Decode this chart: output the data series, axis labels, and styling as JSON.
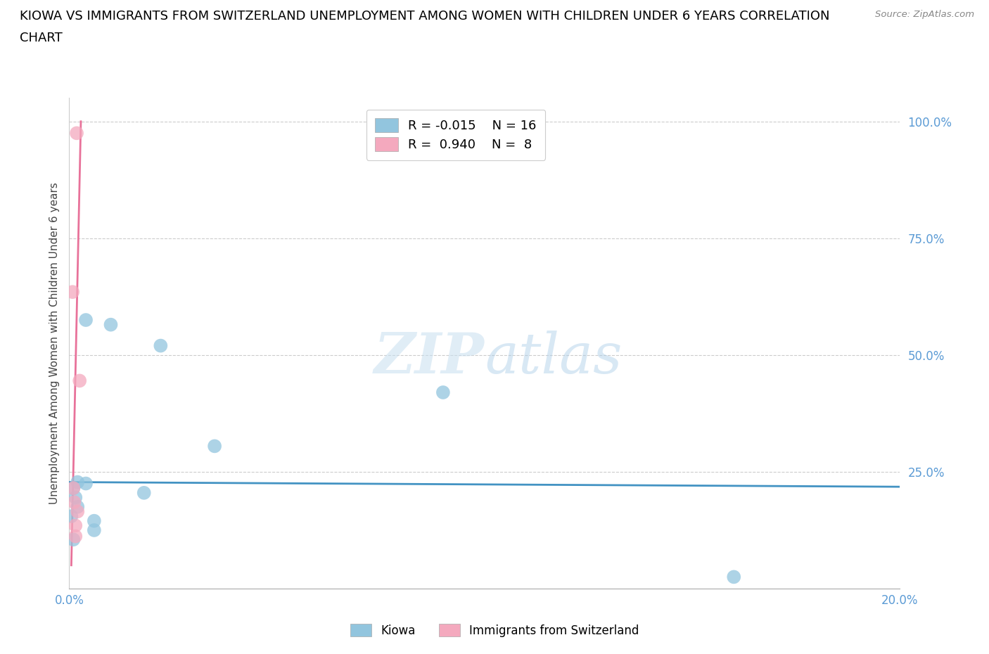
{
  "title_line1": "KIOWA VS IMMIGRANTS FROM SWITZERLAND UNEMPLOYMENT AMONG WOMEN WITH CHILDREN UNDER 6 YEARS CORRELATION",
  "title_line2": "CHART",
  "source": "Source: ZipAtlas.com",
  "ylabel": "Unemployment Among Women with Children Under 6 years",
  "xlim": [
    0.0,
    0.2
  ],
  "ylim": [
    0.0,
    1.05
  ],
  "yticks": [
    0.0,
    0.25,
    0.5,
    0.75,
    1.0
  ],
  "ytick_labels": [
    "",
    "25.0%",
    "50.0%",
    "75.0%",
    "100.0%"
  ],
  "xticks": [
    0.0,
    0.04,
    0.08,
    0.12,
    0.16,
    0.2
  ],
  "xtick_labels": [
    "0.0%",
    "",
    "",
    "",
    "",
    "20.0%"
  ],
  "blue_color": "#92c5de",
  "pink_color": "#f4a9be",
  "trend_blue_color": "#4393c3",
  "trend_pink_color": "#e8729a",
  "legend_R_blue": "R = -0.015",
  "legend_N_blue": "N = 16",
  "legend_R_pink": "R =  0.940",
  "legend_N_pink": "N =  8",
  "blue_scatter_x": [
    0.004,
    0.01,
    0.022,
    0.004,
    0.001,
    0.0015,
    0.002,
    0.0005,
    0.006,
    0.006,
    0.018,
    0.001,
    0.09,
    0.035,
    0.002,
    0.16
  ],
  "blue_scatter_y": [
    0.575,
    0.565,
    0.52,
    0.225,
    0.215,
    0.195,
    0.175,
    0.155,
    0.145,
    0.125,
    0.205,
    0.105,
    0.42,
    0.305,
    0.228,
    0.025
  ],
  "pink_scatter_x": [
    0.0018,
    0.0008,
    0.0025,
    0.001,
    0.0012,
    0.002,
    0.0015,
    0.0015
  ],
  "pink_scatter_y": [
    0.975,
    0.635,
    0.445,
    0.215,
    0.185,
    0.165,
    0.135,
    0.112
  ],
  "blue_trend_x": [
    0.0,
    0.2
  ],
  "blue_trend_y": [
    0.228,
    0.218
  ],
  "pink_trend_x": [
    0.0005,
    0.0028
  ],
  "pink_trend_y": [
    0.05,
    1.0
  ],
  "scatter_size": 200,
  "right_ytick_labels": [
    "25.0%",
    "50.0%",
    "75.0%",
    "100.0%"
  ],
  "right_ytick_vals": [
    0.25,
    0.5,
    0.75,
    1.0
  ]
}
